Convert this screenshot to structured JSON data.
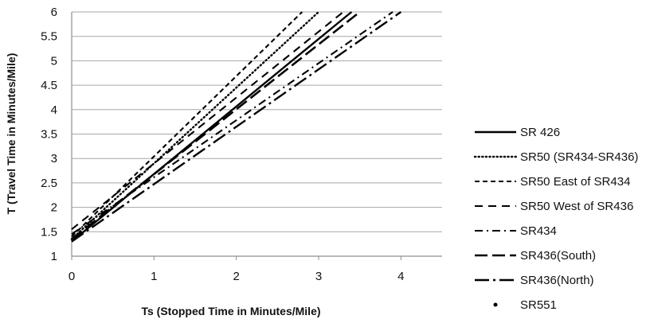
{
  "chart_data": {
    "type": "line",
    "title": "",
    "xlabel": "Ts (Stopped Time in Minutes/Mile)",
    "ylabel": "T (Travel Time in Minutes/Mile)",
    "xlim": [
      0,
      4.5
    ],
    "ylim": [
      1,
      6
    ],
    "x_ticks": [
      0,
      1,
      2,
      3,
      4
    ],
    "y_ticks": [
      1,
      1.5,
      2,
      2.5,
      3,
      3.5,
      4,
      4.5,
      5,
      5.5,
      6
    ],
    "grid": true,
    "legend_position": "right",
    "series": [
      {
        "name": "SR 426",
        "style": "solid",
        "x": [
          0,
          3.4
        ],
        "y": [
          1.3,
          6.0
        ]
      },
      {
        "name": "SR50 (SR434-SR436)",
        "style": "dotted",
        "x": [
          0,
          3.0
        ],
        "y": [
          1.35,
          6.0
        ]
      },
      {
        "name": "SR50 East of SR434",
        "style": "short-dash",
        "x": [
          0,
          2.8
        ],
        "y": [
          1.4,
          6.0
        ]
      },
      {
        "name": "SR50 West of SR436",
        "style": "long-dash",
        "x": [
          0,
          3.3
        ],
        "y": [
          1.55,
          6.0
        ]
      },
      {
        "name": "SR434",
        "style": "dash-dot",
        "x": [
          0,
          3.9
        ],
        "y": [
          1.45,
          6.0
        ]
      },
      {
        "name": "SR436(South)",
        "style": "long-dash-wide",
        "x": [
          0,
          3.5
        ],
        "y": [
          1.35,
          6.0
        ]
      },
      {
        "name": "SR436(North)",
        "style": "long-dash-dot",
        "x": [
          0,
          4.0
        ],
        "y": [
          1.3,
          6.0
        ]
      },
      {
        "name": "SR551",
        "style": "marker",
        "x": [],
        "y": []
      }
    ]
  }
}
